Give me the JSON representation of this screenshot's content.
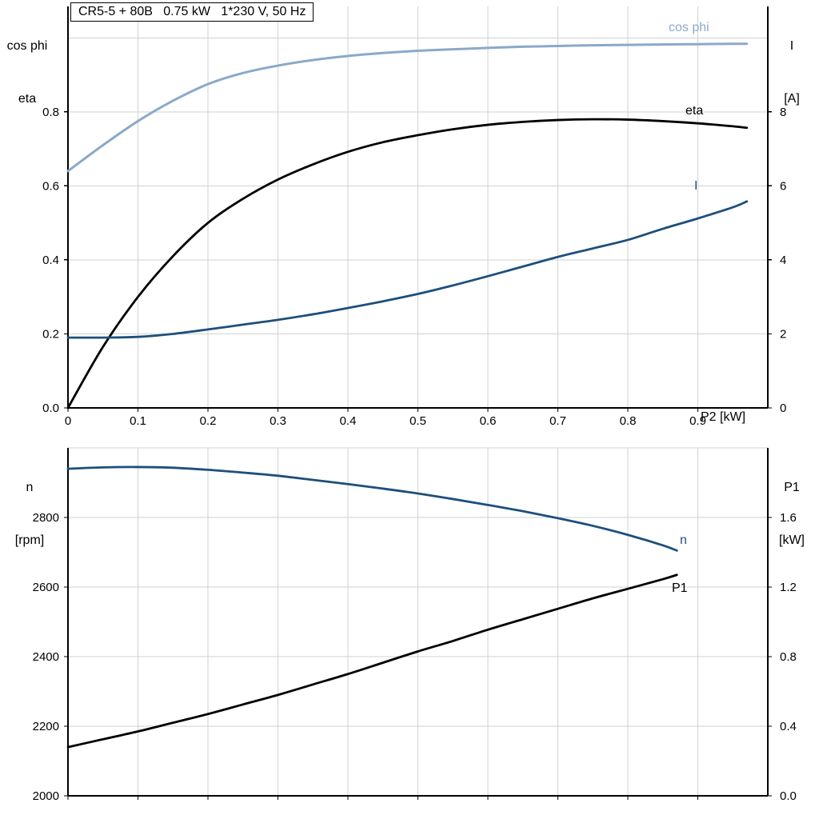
{
  "colors": {
    "light_blue": "#8aa9c9",
    "dark_blue": "#1d4f7c",
    "black": "#000000",
    "grid": "#d2d2d2",
    "axis": "#000000"
  },
  "chart_data": [
    {
      "id": "chart-top",
      "type": "line",
      "title": "CR5-5 + 80B   0.75 kW   1*230 V, 50 Hz",
      "left_axis_title": {
        "line1": "cos phi",
        "line2": "eta"
      },
      "right_axis_title": {
        "line1": "I",
        "line2": "[A]"
      },
      "x_axis_title": "P2 [kW]",
      "xlim": [
        0,
        1.0
      ],
      "ylim_left": [
        0,
        1.085
      ],
      "ylim_right": [
        0,
        10.85
      ],
      "x_ticks": [
        {
          "v": 0,
          "label": "0"
        },
        {
          "v": 0.1,
          "label": "0.1"
        },
        {
          "v": 0.2,
          "label": "0.2"
        },
        {
          "v": 0.3,
          "label": "0.3"
        },
        {
          "v": 0.4,
          "label": "0.4"
        },
        {
          "v": 0.5,
          "label": "0.5"
        },
        {
          "v": 0.6,
          "label": "0.6"
        },
        {
          "v": 0.7,
          "label": "0.7"
        },
        {
          "v": 0.8,
          "label": "0.8"
        },
        {
          "v": 0.9,
          "label": "0.9"
        }
      ],
      "y_left_ticks": [
        {
          "v": 0.0,
          "label": "0.0"
        },
        {
          "v": 0.2,
          "label": "0.2"
        },
        {
          "v": 0.4,
          "label": "0.4"
        },
        {
          "v": 0.6,
          "label": "0.6"
        },
        {
          "v": 0.8,
          "label": "0.8"
        }
      ],
      "y_right_ticks": [
        {
          "v": 0,
          "label": "0"
        },
        {
          "v": 2,
          "label": "2"
        },
        {
          "v": 4,
          "label": "4"
        },
        {
          "v": 6,
          "label": "6"
        },
        {
          "v": 8,
          "label": "8"
        }
      ],
      "y_grid": [
        0.2,
        0.4,
        0.6,
        0.8,
        1.0
      ],
      "series": [
        {
          "key": "cos-phi",
          "label": "cos phi",
          "color": "light_blue",
          "axis": "left",
          "width": 3,
          "points": [
            [
              0,
              0.64
            ],
            [
              0.05,
              0.71
            ],
            [
              0.1,
              0.775
            ],
            [
              0.15,
              0.83
            ],
            [
              0.2,
              0.875
            ],
            [
              0.25,
              0.905
            ],
            [
              0.3,
              0.925
            ],
            [
              0.35,
              0.94
            ],
            [
              0.4,
              0.951
            ],
            [
              0.45,
              0.959
            ],
            [
              0.5,
              0.965
            ],
            [
              0.55,
              0.969
            ],
            [
              0.6,
              0.973
            ],
            [
              0.65,
              0.976
            ],
            [
              0.7,
              0.978
            ],
            [
              0.75,
              0.98
            ],
            [
              0.8,
              0.981
            ],
            [
              0.85,
              0.982
            ],
            [
              0.9,
              0.983
            ],
            [
              0.95,
              0.984
            ],
            [
              0.97,
              0.984
            ]
          ]
        },
        {
          "key": "eta",
          "label": "eta",
          "color": "black",
          "axis": "left",
          "width": 2.8,
          "points": [
            [
              0,
              0
            ],
            [
              0.05,
              0.165
            ],
            [
              0.1,
              0.3
            ],
            [
              0.15,
              0.41
            ],
            [
              0.2,
              0.5
            ],
            [
              0.25,
              0.565
            ],
            [
              0.3,
              0.617
            ],
            [
              0.35,
              0.658
            ],
            [
              0.4,
              0.692
            ],
            [
              0.45,
              0.718
            ],
            [
              0.5,
              0.737
            ],
            [
              0.55,
              0.753
            ],
            [
              0.6,
              0.765
            ],
            [
              0.65,
              0.773
            ],
            [
              0.7,
              0.778
            ],
            [
              0.75,
              0.78
            ],
            [
              0.8,
              0.779
            ],
            [
              0.85,
              0.775
            ],
            [
              0.9,
              0.769
            ],
            [
              0.95,
              0.761
            ],
            [
              0.97,
              0.757
            ]
          ]
        },
        {
          "key": "current",
          "label": "I",
          "color": "dark_blue",
          "axis": "right",
          "width": 2.8,
          "points": [
            [
              0,
              1.9
            ],
            [
              0.05,
              1.9
            ],
            [
              0.1,
              1.92
            ],
            [
              0.15,
              2.0
            ],
            [
              0.2,
              2.12
            ],
            [
              0.25,
              2.25
            ],
            [
              0.3,
              2.38
            ],
            [
              0.35,
              2.53
            ],
            [
              0.4,
              2.7
            ],
            [
              0.45,
              2.88
            ],
            [
              0.5,
              3.08
            ],
            [
              0.55,
              3.31
            ],
            [
              0.6,
              3.56
            ],
            [
              0.65,
              3.82
            ],
            [
              0.7,
              4.08
            ],
            [
              0.75,
              4.31
            ],
            [
              0.8,
              4.54
            ],
            [
              0.85,
              4.84
            ],
            [
              0.9,
              5.12
            ],
            [
              0.95,
              5.42
            ],
            [
              0.97,
              5.58
            ]
          ]
        }
      ]
    },
    {
      "id": "chart-bottom",
      "type": "line",
      "title": "",
      "left_axis_title": {
        "line1": "n",
        "line2": "[rpm]"
      },
      "right_axis_title": {
        "line1": "P1",
        "line2": "[kW]"
      },
      "x_axis_title": "",
      "xlim": [
        0,
        1.0
      ],
      "ylim_left": [
        2000,
        3000
      ],
      "ylim_right": [
        0,
        2.0
      ],
      "x_ticks": [
        {
          "v": 0,
          "label": ""
        },
        {
          "v": 0.1,
          "label": ""
        },
        {
          "v": 0.2,
          "label": ""
        },
        {
          "v": 0.3,
          "label": ""
        },
        {
          "v": 0.4,
          "label": ""
        },
        {
          "v": 0.5,
          "label": ""
        },
        {
          "v": 0.6,
          "label": ""
        },
        {
          "v": 0.7,
          "label": ""
        },
        {
          "v": 0.8,
          "label": ""
        },
        {
          "v": 0.9,
          "label": ""
        }
      ],
      "y_left_ticks": [
        {
          "v": 2000,
          "label": "2000"
        },
        {
          "v": 2200,
          "label": "2200"
        },
        {
          "v": 2400,
          "label": "2400"
        },
        {
          "v": 2600,
          "label": "2600"
        },
        {
          "v": 2800,
          "label": "2800"
        }
      ],
      "y_right_ticks": [
        {
          "v": 0.0,
          "label": "0.0"
        },
        {
          "v": 0.4,
          "label": "0.4"
        },
        {
          "v": 0.8,
          "label": "0.8"
        },
        {
          "v": 1.2,
          "label": "1.2"
        },
        {
          "v": 1.6,
          "label": "1.6"
        }
      ],
      "y_grid": [
        2200,
        2400,
        2600,
        2800,
        3000
      ],
      "series": [
        {
          "key": "speed",
          "label": "n",
          "color": "dark_blue",
          "axis": "left",
          "width": 2.8,
          "points": [
            [
              0,
              2940
            ],
            [
              0.05,
              2944
            ],
            [
              0.1,
              2945
            ],
            [
              0.15,
              2943
            ],
            [
              0.2,
              2937
            ],
            [
              0.25,
              2929
            ],
            [
              0.3,
              2920
            ],
            [
              0.35,
              2908
            ],
            [
              0.4,
              2896
            ],
            [
              0.45,
              2883
            ],
            [
              0.5,
              2869
            ],
            [
              0.55,
              2853
            ],
            [
              0.6,
              2836
            ],
            [
              0.65,
              2818
            ],
            [
              0.7,
              2798
            ],
            [
              0.75,
              2776
            ],
            [
              0.8,
              2750
            ],
            [
              0.85,
              2720
            ],
            [
              0.87,
              2705
            ]
          ]
        },
        {
          "key": "p1",
          "label": "P1",
          "color": "black",
          "axis": "right",
          "width": 2.8,
          "points": [
            [
              0,
              0.28
            ],
            [
              0.05,
              0.325
            ],
            [
              0.1,
              0.37
            ],
            [
              0.15,
              0.42
            ],
            [
              0.2,
              0.47
            ],
            [
              0.25,
              0.525
            ],
            [
              0.3,
              0.58
            ],
            [
              0.35,
              0.64
            ],
            [
              0.4,
              0.7
            ],
            [
              0.45,
              0.765
            ],
            [
              0.5,
              0.83
            ],
            [
              0.55,
              0.89
            ],
            [
              0.6,
              0.955
            ],
            [
              0.65,
              1.015
            ],
            [
              0.7,
              1.075
            ],
            [
              0.75,
              1.135
            ],
            [
              0.8,
              1.19
            ],
            [
              0.85,
              1.245
            ],
            [
              0.87,
              1.27
            ]
          ]
        }
      ]
    }
  ]
}
